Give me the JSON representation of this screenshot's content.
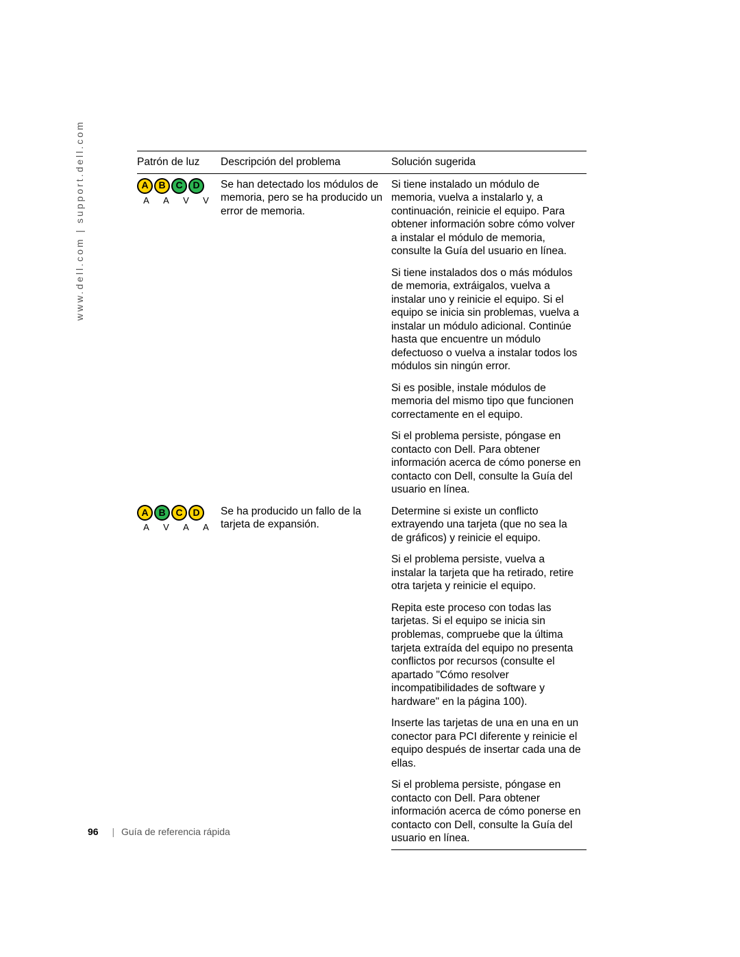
{
  "side_text": "www.dell.com | support.dell.com",
  "table": {
    "headers": {
      "pattern": "Patrón de luz",
      "description": "Descripción del problema",
      "solution": "Solución sugerida"
    },
    "rows": [
      {
        "lights": [
          {
            "letter": "A",
            "color": "yellow",
            "label": "A"
          },
          {
            "letter": "B",
            "color": "yellow",
            "label": "A"
          },
          {
            "letter": "C",
            "color": "green",
            "label": "V"
          },
          {
            "letter": "D",
            "color": "green",
            "label": "V"
          }
        ],
        "description": "Se han detectado los módulos de memoria, pero se ha producido un error de memoria.",
        "solutions": [
          "Si tiene instalado un módulo de memoria, vuelva a instalarlo y, a continuación, reinicie el equipo. Para obtener información sobre cómo volver a instalar el módulo de memoria, consulte la Guía del usuario en línea.",
          "Si tiene instalados dos o más módulos de memoria, extráigalos, vuelva a instalar uno y reinicie el equipo. Si el equipo se inicia sin problemas, vuelva a instalar un módulo adicional. Continúe hasta que encuentre un módulo defectuoso o vuelva a instalar todos los módulos sin ningún error.",
          "Si es posible, instale módulos de memoria del mismo tipo que funcionen correctamente en el equipo.",
          "Si el problema persiste, póngase en contacto con Dell. Para obtener información acerca de cómo ponerse en contacto con Dell, consulte la Guía del usuario en línea."
        ]
      },
      {
        "lights": [
          {
            "letter": "A",
            "color": "yellow",
            "label": "A"
          },
          {
            "letter": "B",
            "color": "green",
            "label": "V"
          },
          {
            "letter": "C",
            "color": "yellow",
            "label": "A"
          },
          {
            "letter": "D",
            "color": "yellow",
            "label": "A"
          }
        ],
        "description": "Se ha producido un fallo de la tarjeta de expansión.",
        "solutions": [
          "Determine si existe un conflicto extrayendo una tarjeta (que no sea la de gráficos) y reinicie el equipo.",
          "Si el problema persiste, vuelva a instalar la tarjeta que ha retirado, retire otra tarjeta y reinicie el equipo.",
          "Repita este proceso con todas las tarjetas. Si el equipo se inicia sin problemas, compruebe que la última tarjeta extraída del equipo no presenta conflictos por recursos (consulte el apartado \"Cómo resolver incompatibilidades de software y hardware\" en la página 100).",
          "Inserte las tarjetas de una en una en un conector para PCI diferente y reinicie el equipo después de insertar cada una de ellas.",
          "Si el problema persiste, póngase en contacto con Dell. Para obtener información acerca de cómo ponerse en contacto con Dell, consulte la Guía del usuario en línea."
        ]
      }
    ]
  },
  "footer": {
    "page_number": "96",
    "title": "Guía de referencia rápida"
  },
  "colors": {
    "yellow": "#ffd400",
    "green": "#2bb551",
    "rule": "#000000",
    "side_text": "#555555"
  }
}
